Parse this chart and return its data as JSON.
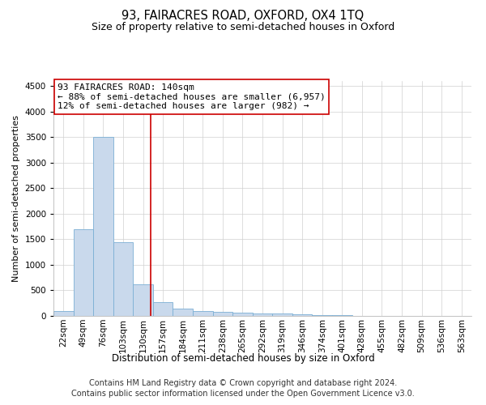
{
  "title": "93, FAIRACRES ROAD, OXFORD, OX4 1TQ",
  "subtitle": "Size of property relative to semi-detached houses in Oxford",
  "xlabel": "Distribution of semi-detached houses by size in Oxford",
  "ylabel": "Number of semi-detached properties",
  "footer_line1": "Contains HM Land Registry data © Crown copyright and database right 2024.",
  "footer_line2": "Contains public sector information licensed under the Open Government Licence v3.0.",
  "annotation_title": "93 FAIRACRES ROAD: 140sqm",
  "annotation_line1": "← 88% of semi-detached houses are smaller (6,957)",
  "annotation_line2": "12% of semi-detached houses are larger (982) →",
  "bar_color": "#c9d9ec",
  "bar_edge_color": "#7bafd4",
  "line_color": "#cc0000",
  "annotation_box_color": "#ffffff",
  "annotation_box_edge": "#cc0000",
  "grid_color": "#d0d0d0",
  "background_color": "#ffffff",
  "categories": [
    "22sqm",
    "49sqm",
    "76sqm",
    "103sqm",
    "130sqm",
    "157sqm",
    "184sqm",
    "211sqm",
    "238sqm",
    "265sqm",
    "292sqm",
    "319sqm",
    "346sqm",
    "374sqm",
    "401sqm",
    "428sqm",
    "455sqm",
    "482sqm",
    "509sqm",
    "536sqm",
    "563sqm"
  ],
  "values": [
    100,
    1700,
    3500,
    1450,
    620,
    270,
    150,
    100,
    75,
    60,
    50,
    40,
    30,
    15,
    8,
    5,
    3,
    2,
    1,
    1,
    1
  ],
  "ylim": [
    0,
    4600
  ],
  "yticks": [
    0,
    500,
    1000,
    1500,
    2000,
    2500,
    3000,
    3500,
    4000,
    4500
  ],
  "title_fontsize": 10.5,
  "subtitle_fontsize": 9,
  "ylabel_fontsize": 8,
  "xlabel_fontsize": 8.5,
  "tick_fontsize": 7.5,
  "annotation_fontsize": 8,
  "footer_fontsize": 7
}
